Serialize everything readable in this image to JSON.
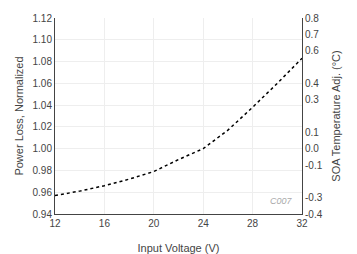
{
  "chart_data": {
    "type": "line",
    "xlabel": "Input Voltage (V)",
    "ylabel": "Power Loss, Normalized",
    "y2label": "SOA Temperature Adj. (°C)",
    "x": [
      12,
      14,
      16,
      18,
      20,
      22,
      24,
      26,
      28,
      30,
      32
    ],
    "series": [
      {
        "values": [
          0.957,
          0.961,
          0.966,
          0.972,
          0.979,
          0.99,
          1.0,
          1.017,
          1.038,
          1.06,
          1.083
        ],
        "color": "#000000",
        "line_style": "dotted"
      }
    ],
    "xlim": [
      12,
      32
    ],
    "ylim": [
      0.94,
      1.12
    ],
    "y2lim": [
      -0.4,
      0.8
    ],
    "xticks": [
      12,
      16,
      20,
      24,
      28,
      32
    ],
    "yticks": [
      0.94,
      0.96,
      0.98,
      {
        "value": 1.0,
        "label": "1.00"
      },
      1.02,
      1.04,
      1.06,
      1.08,
      {
        "value": 1.1,
        "label": "1.10"
      },
      1.12
    ],
    "y2ticks": [
      -0.4,
      -0.3,
      -0.1,
      {
        "value": 0.0,
        "label": "0.0"
      },
      0.1,
      0.3,
      0.4,
      0.6,
      0.7,
      0.8
    ],
    "grid": true,
    "annotations": [
      {
        "text": "C007"
      }
    ]
  }
}
